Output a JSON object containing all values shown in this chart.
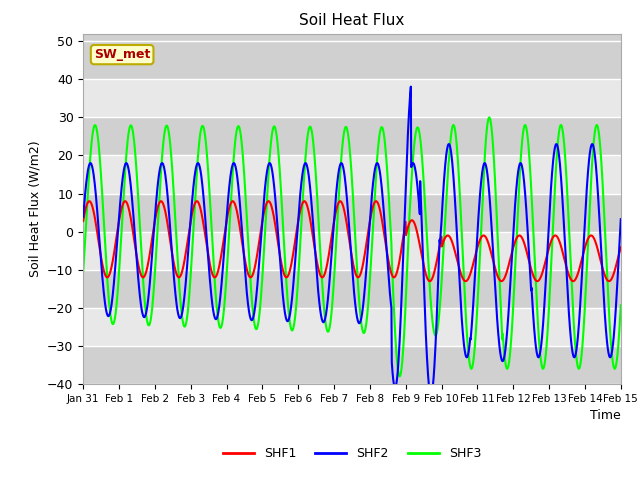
{
  "title": "Soil Heat Flux",
  "ylabel": "Soil Heat Flux (W/m2)",
  "xlabel": "Time",
  "ylim": [
    -40,
    52
  ],
  "yticks": [
    -40,
    -30,
    -20,
    -10,
    0,
    10,
    20,
    30,
    40,
    50
  ],
  "xtick_labels": [
    "Jan 31",
    "Feb 1",
    "Feb 2",
    "Feb 3",
    "Feb 4",
    "Feb 5",
    "Feb 6",
    "Feb 7",
    "Feb 8",
    "Feb 9",
    "Feb 10",
    "Feb 11",
    "Feb 12",
    "Feb 13",
    "Feb 14",
    "Feb 15"
  ],
  "line_colors": [
    "red",
    "blue",
    "lime"
  ],
  "line_labels": [
    "SHF1",
    "SHF2",
    "SHF3"
  ],
  "annotation_text": "SW_met",
  "annotation_bg": "#ffffcc",
  "annotation_edge": "#bbaa00",
  "annotation_text_color": "#aa0000",
  "plot_bg_color": "#d8d8d8",
  "band_light": "#e8e8e8",
  "band_dark": "#d0d0d0",
  "grid_color": "white"
}
